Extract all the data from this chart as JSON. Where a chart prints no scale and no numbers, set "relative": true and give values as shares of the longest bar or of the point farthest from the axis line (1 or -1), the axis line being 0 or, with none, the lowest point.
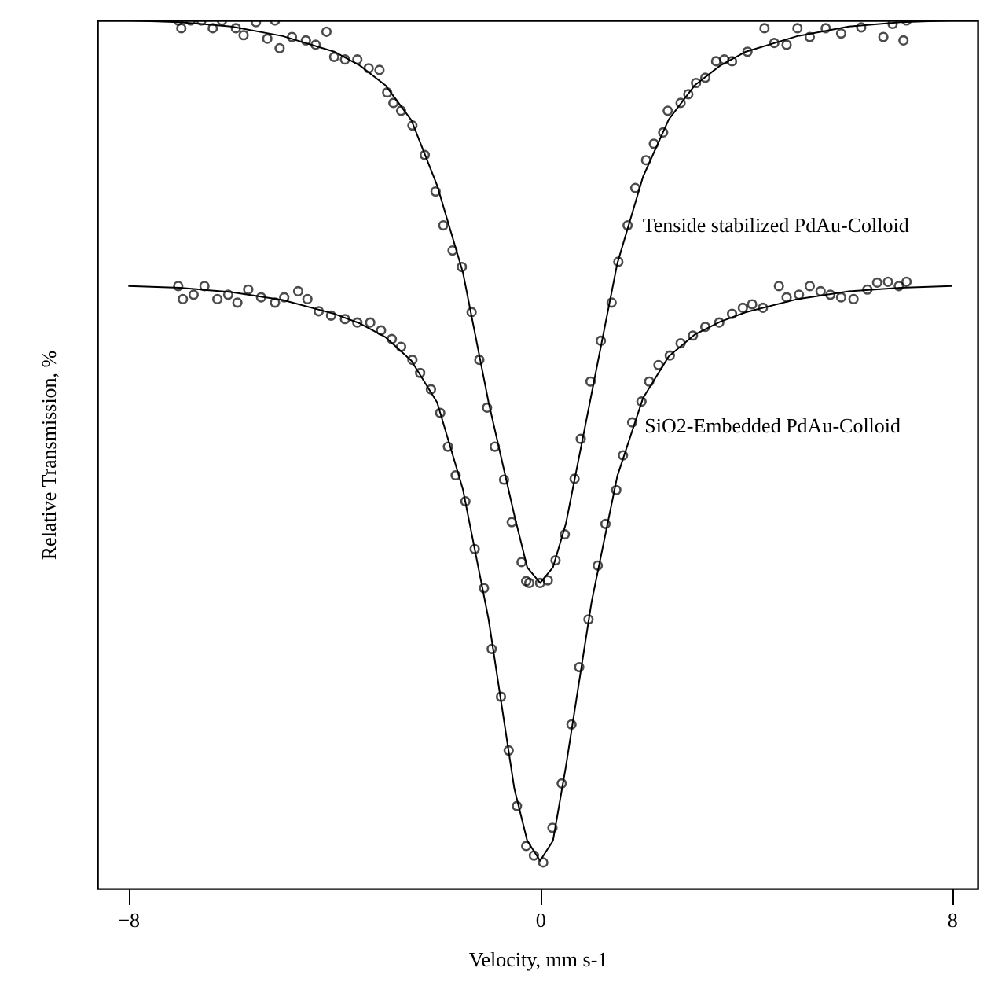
{
  "chart_data": {
    "type": "line",
    "relative": true,
    "xlabel": "Velocity, mm s-1",
    "ylabel": "Relative Transmission, %",
    "xlim": [
      -8.6,
      8.5
    ],
    "xticks": [
      -8,
      0,
      8
    ],
    "grid": false,
    "annotations": [
      {
        "text": "Tenside stabilized PdAu-Colloid",
        "x": 1.9,
        "y": 0.764
      },
      {
        "text": "SiO2-Embedded PdAu-Colloid",
        "x": 1.94,
        "y": 0.533
      }
    ],
    "series": [
      {
        "type": "scatter",
        "marker": "circle",
        "color": "#000000",
        "x": [
          -7.03,
          -6.97,
          -6.79,
          -6.58,
          -6.36,
          -6.18,
          -5.91,
          -5.76,
          -5.52,
          -5.3,
          -5.15,
          -5.06,
          -4.82,
          -4.55,
          -4.36,
          -4.15,
          -4.0,
          -3.79,
          -3.55,
          -3.33,
          -3.12,
          -2.97,
          -2.85,
          -2.7,
          -2.48,
          -2.24,
          -2.03,
          -1.88,
          -1.7,
          -1.52,
          -1.33,
          -1.18,
          -1.03,
          -0.88,
          -0.7,
          -0.55,
          -0.36,
          -0.27,
          -0.21,
          0,
          0.15,
          0.3,
          0.48,
          0.67,
          0.79,
          0.98,
          1.18,
          1.39,
          1.52,
          1.7,
          1.85,
          2.06,
          2.21,
          2.39,
          2.48,
          2.73,
          2.88,
          3.03,
          3.21,
          3.42,
          3.58,
          3.73,
          4.03,
          4.36,
          4.55,
          4.79,
          5.0,
          5.24,
          5.55,
          5.85,
          6.24,
          6.67,
          6.85,
          7.06,
          7.12
        ],
        "values": [
          1.0,
          0.991,
          1.0,
          1.0,
          0.991,
          1.0,
          0.991,
          0.983,
          0.998,
          0.979,
          1.0,
          0.968,
          0.981,
          0.977,
          0.972,
          0.987,
          0.958,
          0.955,
          0.955,
          0.945,
          0.943,
          0.917,
          0.905,
          0.896,
          0.879,
          0.845,
          0.803,
          0.764,
          0.735,
          0.716,
          0.664,
          0.609,
          0.554,
          0.509,
          0.471,
          0.422,
          0.376,
          0.354,
          0.352,
          0.352,
          0.355,
          0.378,
          0.408,
          0.472,
          0.518,
          0.584,
          0.631,
          0.675,
          0.722,
          0.764,
          0.807,
          0.839,
          0.858,
          0.871,
          0.896,
          0.905,
          0.915,
          0.928,
          0.934,
          0.953,
          0.955,
          0.953,
          0.964,
          0.991,
          0.974,
          0.972,
          0.991,
          0.981,
          0.991,
          0.985,
          0.992,
          0.981,
          0.996,
          0.977,
          1.0
        ]
      },
      {
        "marker": "none",
        "line_style": "solid",
        "color": "#000000",
        "x": [
          -8,
          -7,
          -6,
          -5,
          -4,
          -3.5,
          -3,
          -2.5,
          -2,
          -1.5,
          -1,
          -0.5,
          -0.25,
          0,
          0.25,
          0.5,
          1,
          1.5,
          2,
          2.5,
          3,
          3.5,
          4,
          5,
          6,
          7,
          8
        ],
        "values": [
          1.0,
          0.998,
          0.993,
          0.982,
          0.964,
          0.948,
          0.925,
          0.885,
          0.81,
          0.71,
          0.56,
          0.43,
          0.37,
          0.352,
          0.37,
          0.42,
          0.57,
          0.72,
          0.82,
          0.886,
          0.925,
          0.948,
          0.964,
          0.982,
          0.993,
          0.998,
          1.0
        ]
      },
      {
        "type": "scatter",
        "marker": "circle",
        "color": "#000000",
        "x": [
          -7.03,
          -6.94,
          -6.73,
          -6.52,
          -6.27,
          -6.06,
          -5.88,
          -5.67,
          -5.42,
          -5.15,
          -4.97,
          -4.7,
          -4.52,
          -4.3,
          -4.06,
          -3.79,
          -3.55,
          -3.3,
          -3.09,
          -2.88,
          -2.7,
          -2.48,
          -2.33,
          -2.12,
          -1.94,
          -1.79,
          -1.64,
          -1.45,
          -1.27,
          -1.09,
          -0.94,
          -0.76,
          -0.61,
          -0.45,
          -0.27,
          -0.12,
          0.06,
          0.24,
          0.42,
          0.61,
          0.76,
          0.94,
          1.12,
          1.27,
          1.48,
          1.61,
          1.79,
          1.97,
          2.12,
          2.3,
          2.52,
          2.73,
          2.97,
          3.21,
          3.48,
          3.73,
          3.94,
          4.12,
          4.33,
          4.64,
          4.79,
          5.03,
          5.24,
          5.45,
          5.64,
          5.85,
          6.09,
          6.36,
          6.55,
          6.76,
          6.97,
          7.12
        ],
        "values": [
          0.694,
          0.679,
          0.684,
          0.694,
          0.679,
          0.684,
          0.675,
          0.69,
          0.681,
          0.675,
          0.681,
          0.688,
          0.679,
          0.665,
          0.66,
          0.656,
          0.652,
          0.652,
          0.643,
          0.633,
          0.624,
          0.609,
          0.594,
          0.575,
          0.548,
          0.509,
          0.476,
          0.446,
          0.391,
          0.346,
          0.276,
          0.221,
          0.159,
          0.095,
          0.049,
          0.038,
          0.03,
          0.07,
          0.121,
          0.189,
          0.255,
          0.31,
          0.372,
          0.42,
          0.459,
          0.499,
          0.537,
          0.561,
          0.584,
          0.603,
          0.614,
          0.628,
          0.637,
          0.647,
          0.652,
          0.662,
          0.669,
          0.673,
          0.669,
          0.694,
          0.681,
          0.684,
          0.694,
          0.688,
          0.684,
          0.681,
          0.679,
          0.69,
          0.698,
          0.699,
          0.694,
          0.699
        ]
      },
      {
        "marker": "none",
        "line_style": "solid",
        "color": "#000000",
        "x": [
          -8,
          -7,
          -6,
          -5,
          -4,
          -3.5,
          -3,
          -2.5,
          -2,
          -1.5,
          -1,
          -0.5,
          -0.25,
          0,
          0.25,
          0.5,
          1,
          1.5,
          2,
          2.5,
          3,
          3.5,
          4,
          5,
          6,
          7,
          8
        ],
        "values": [
          0.694,
          0.692,
          0.687,
          0.678,
          0.662,
          0.651,
          0.635,
          0.608,
          0.56,
          0.46,
          0.31,
          0.115,
          0.055,
          0.032,
          0.055,
          0.14,
          0.33,
          0.475,
          0.565,
          0.613,
          0.638,
          0.653,
          0.664,
          0.679,
          0.688,
          0.692,
          0.694
        ]
      }
    ]
  }
}
